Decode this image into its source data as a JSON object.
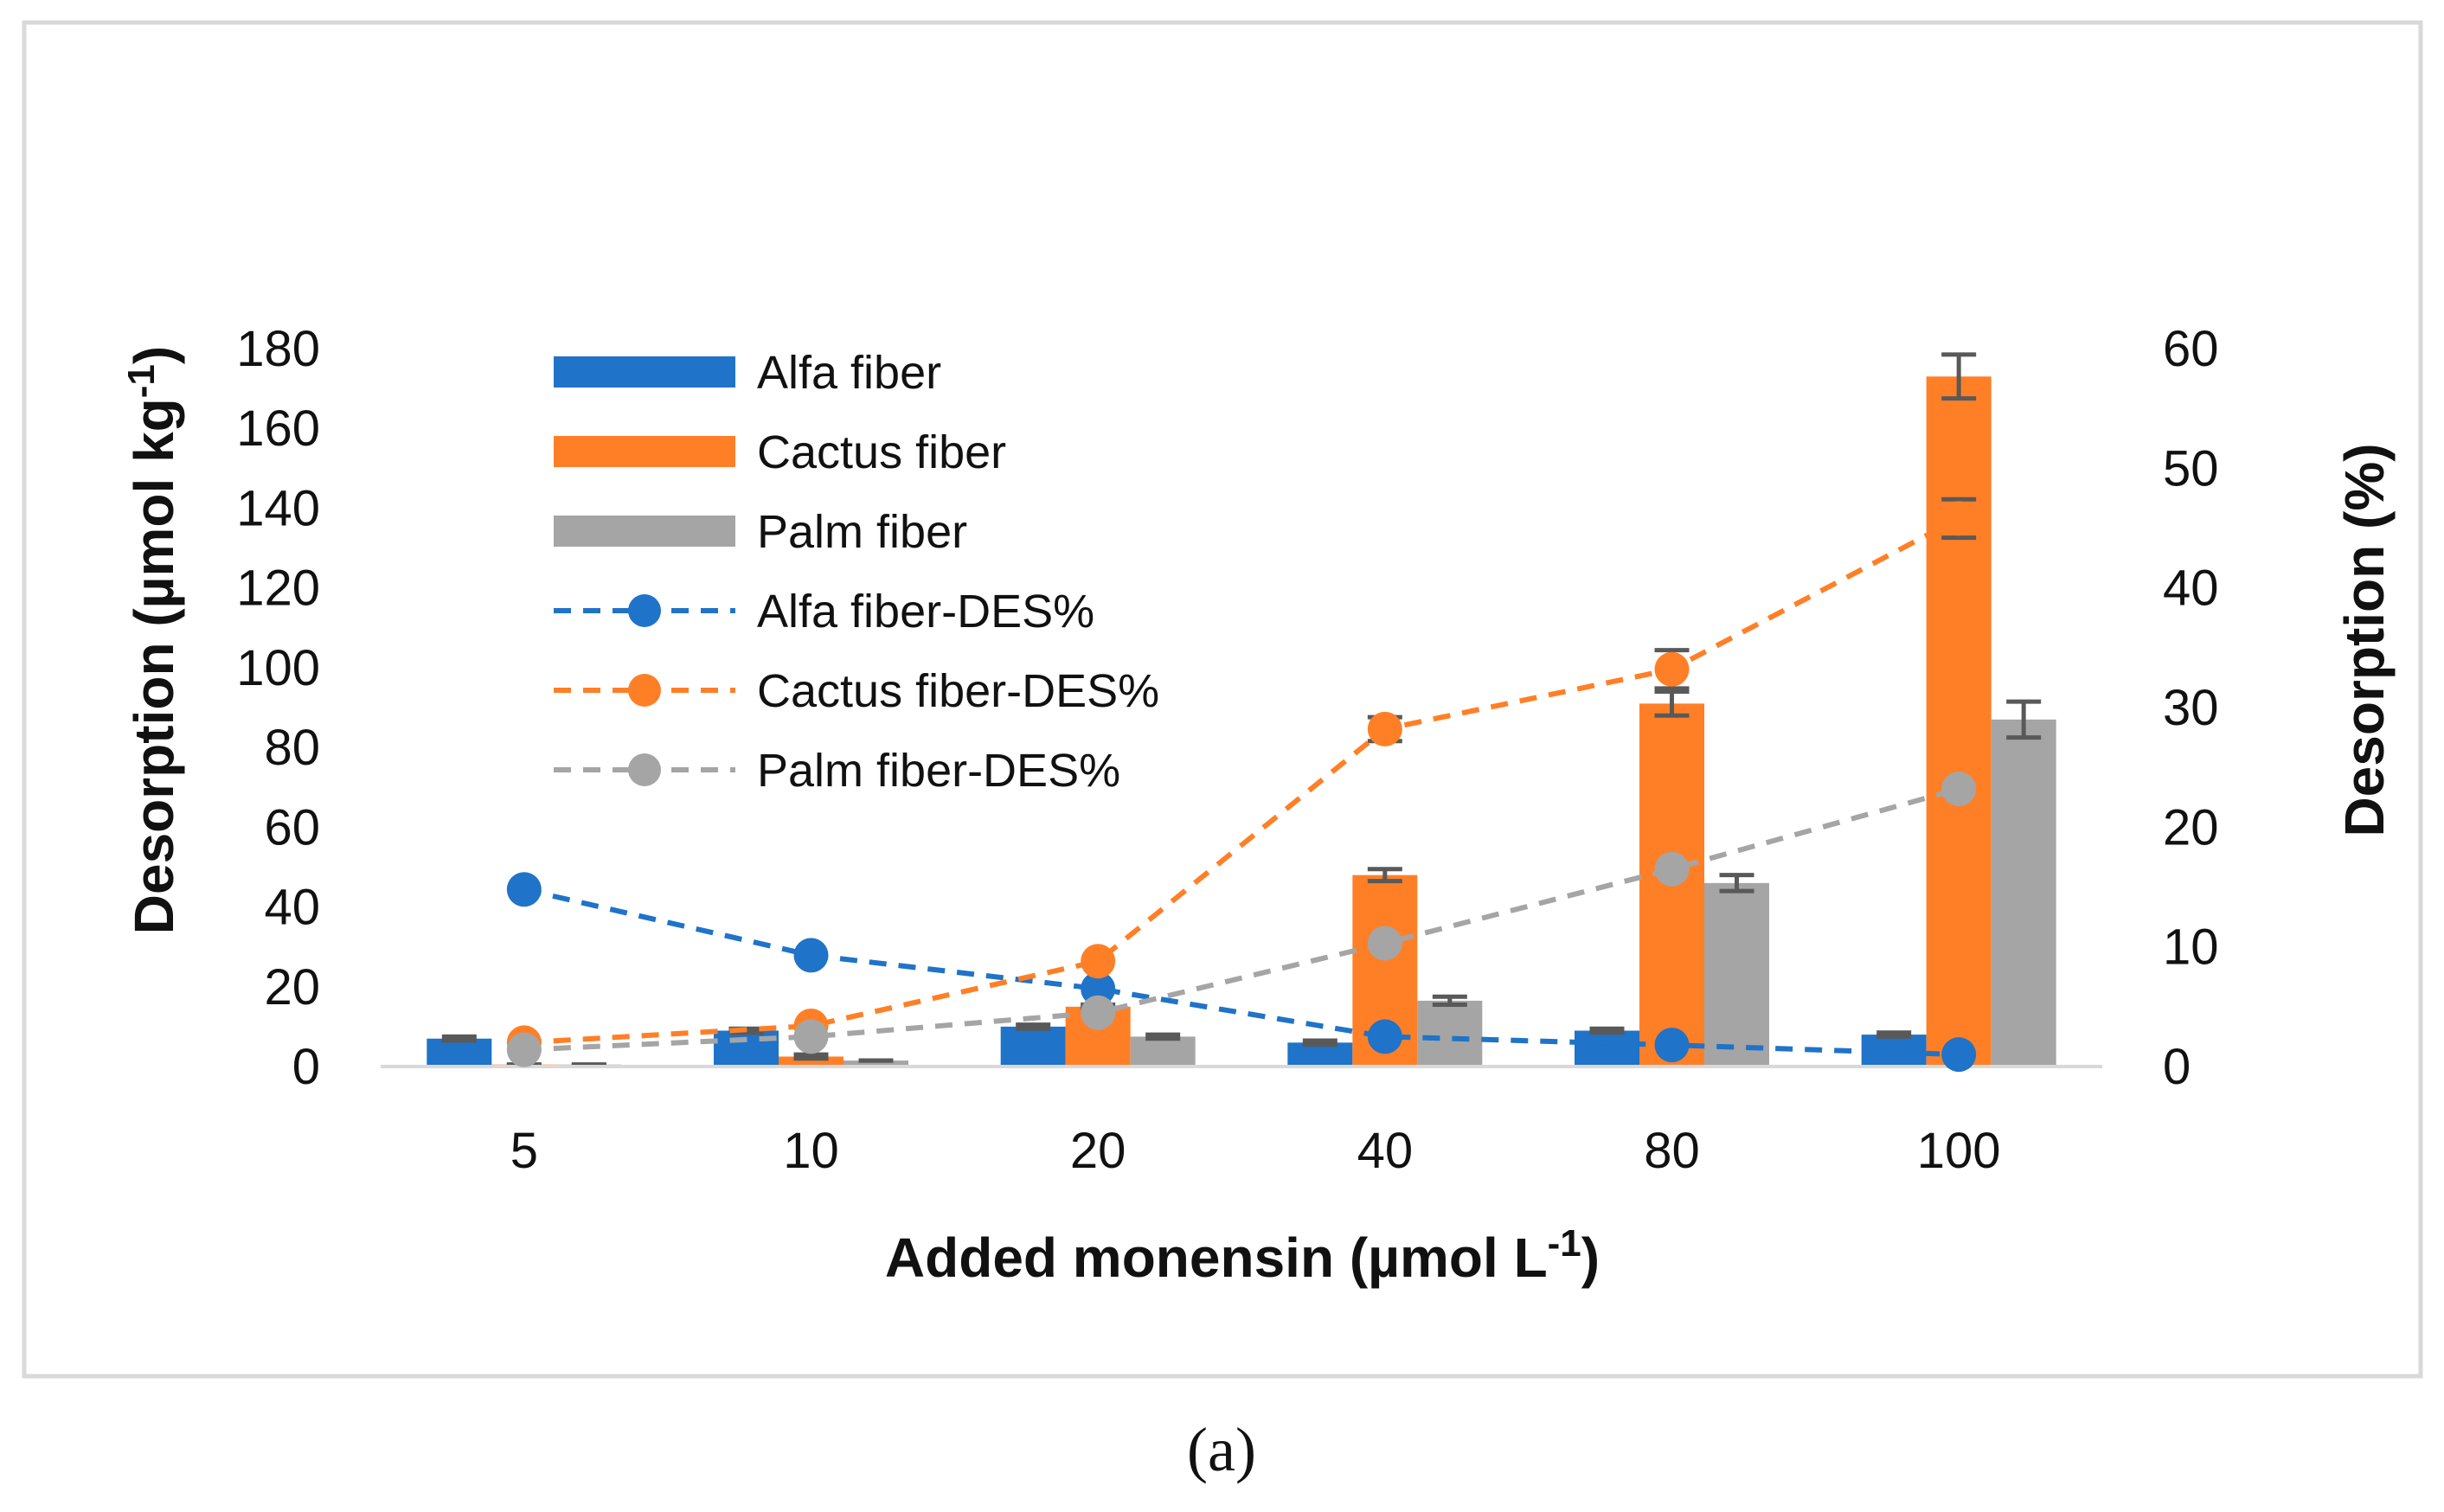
{
  "chart_data": {
    "type": "bar",
    "categories": [
      "5",
      "10",
      "20",
      "40",
      "80",
      "100"
    ],
    "xlabel": "Added monensin (µmol L",
    "xlabel_sup": "-1",
    "xlabel_end": ")",
    "ylabel_left": "Desorption (µmol kg",
    "ylabel_left_sup": "-1",
    "ylabel_left_end": ")",
    "ylabel_right": "Desorption (%)",
    "ylim_left": [
      0,
      180
    ],
    "yticks_left": [
      "0",
      "20",
      "40",
      "60",
      "80",
      "100",
      "120",
      "140",
      "160",
      "180"
    ],
    "ylim_right": [
      0,
      60
    ],
    "yticks_right": [
      "0",
      "10",
      "20",
      "30",
      "40",
      "50",
      "60"
    ],
    "bar_series": [
      {
        "name": "Alfa fiber",
        "color": "#1f73c8",
        "values": [
          7,
          9,
          10,
          6,
          9,
          8
        ],
        "errors": [
          0.5,
          0.5,
          0.5,
          0.5,
          0.5,
          0.5
        ]
      },
      {
        "name": "Cactus fiber",
        "color": "#ff7f27",
        "values": [
          0.5,
          2.5,
          15,
          48,
          91,
          173
        ],
        "errors": [
          0,
          0.5,
          0.5,
          1.5,
          3,
          5.5
        ]
      },
      {
        "name": "Palm fiber",
        "color": "#a5a5a5",
        "values": [
          0.5,
          1.5,
          7.5,
          16.5,
          46,
          87
        ],
        "errors": [
          0,
          0,
          0.5,
          1,
          2,
          4.5
        ]
      }
    ],
    "line_series": [
      {
        "name": "Alfa fiber-DES%",
        "color": "#1f73c8",
        "axis": "right",
        "values": [
          14.8,
          9.3,
          6.5,
          2.5,
          1.8,
          1.0
        ],
        "errors": [
          0,
          0,
          0,
          0,
          0,
          0
        ]
      },
      {
        "name": "Cactus fiber-DES%",
        "color": "#ff7f27",
        "axis": "right",
        "values": [
          2.0,
          3.4,
          8.8,
          28.2,
          33.2,
          45.8
        ],
        "errors": [
          0,
          0,
          0,
          1.0,
          1.6,
          1.6
        ]
      },
      {
        "name": "Palm fiber-DES%",
        "color": "#a5a5a5",
        "axis": "right",
        "values": [
          1.4,
          2.5,
          4.5,
          10.3,
          16.5,
          23.2
        ],
        "errors": [
          0,
          0,
          0,
          0,
          0,
          0
        ]
      }
    ],
    "legend": [
      "Alfa fiber",
      "Cactus fiber",
      "Palm fiber",
      "Alfa fiber-DES%",
      "Cactus fiber-DES%",
      "Palm fiber-DES%"
    ],
    "legend_position": "upper-left inside plot",
    "grid": false
  },
  "caption": "(a)"
}
